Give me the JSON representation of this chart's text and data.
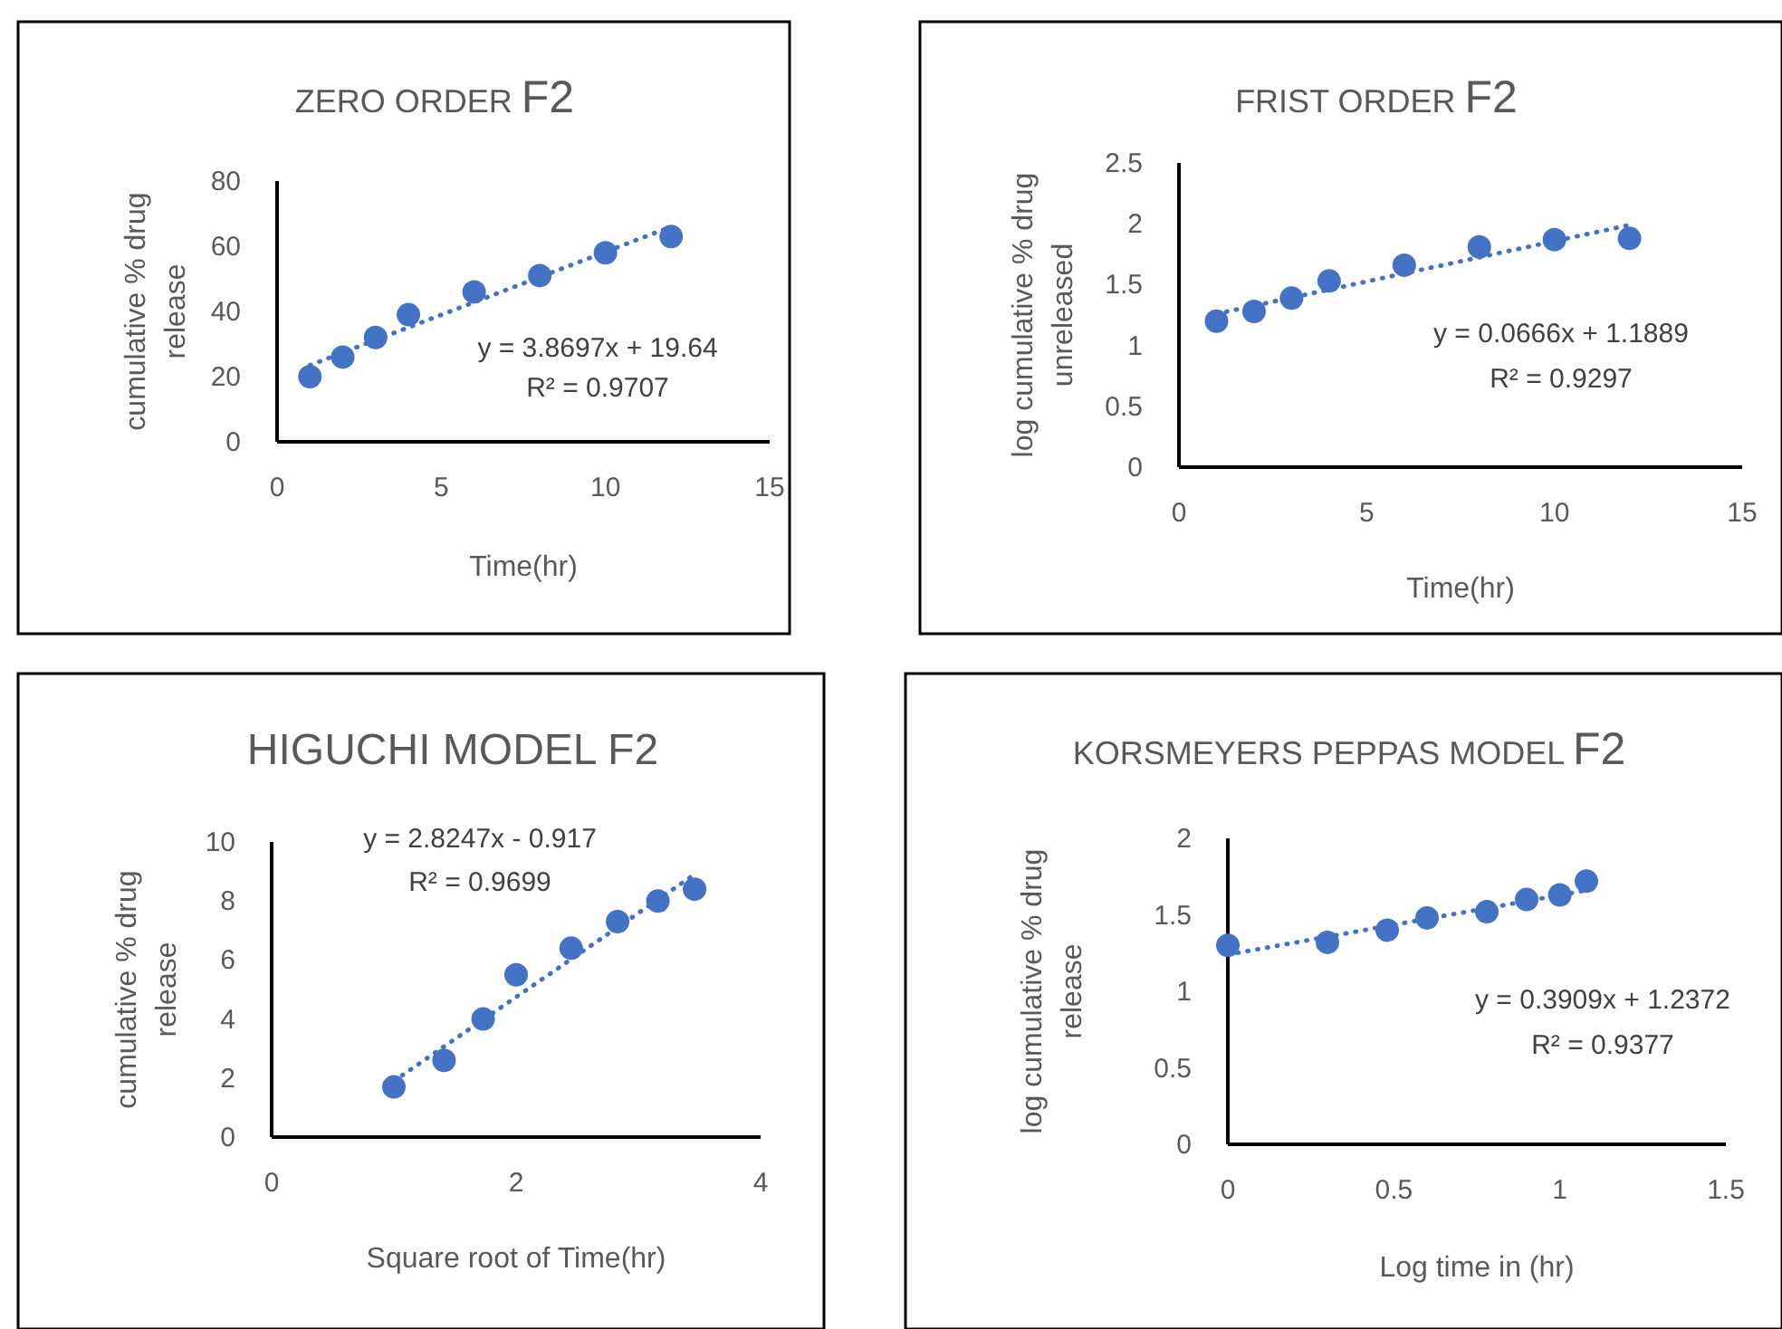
{
  "chart_data": [
    {
      "type": "scatter",
      "title": "ZERO ORDER F2",
      "xlabel": "Time(hr)",
      "ylabel": "cumulative % drug release",
      "x": [
        1,
        2,
        3,
        4,
        6,
        8,
        10,
        12
      ],
      "xlim": [
        0,
        15
      ],
      "xticks": [
        0,
        5,
        10,
        15
      ],
      "ylim": [
        0,
        80
      ],
      "yticks": [
        0,
        20,
        40,
        60,
        80
      ],
      "grid": false,
      "marker": "circle",
      "series": [
        {
          "color": "#4472c4",
          "values": [
            20,
            26,
            32,
            39,
            46,
            51,
            58,
            63
          ]
        },
        {
          "type": "line",
          "color": "#4472c4",
          "x": [
            1,
            12
          ],
          "values": [
            23.5,
            66
          ],
          "line_style": "dotted",
          "marker": "none"
        }
      ],
      "annotations": [
        "y = 3.8697x + 19.64",
        "R² = 0.9707"
      ]
    },
    {
      "type": "scatter",
      "title": "FRIST ORDER  F2",
      "xlabel": "Time(hr)",
      "ylabel": "log cumulative % drug unreleased",
      "x": [
        1,
        2,
        3,
        4,
        6,
        8,
        10,
        12
      ],
      "xlim": [
        0,
        15
      ],
      "xticks": [
        0,
        5,
        10,
        15
      ],
      "ylim": [
        0,
        2.5
      ],
      "yticks": [
        0,
        0.5,
        1,
        1.5,
        2,
        2.5
      ],
      "grid": false,
      "marker": "circle",
      "series": [
        {
          "color": "#4472c4",
          "values": [
            1.2,
            1.28,
            1.39,
            1.53,
            1.66,
            1.81,
            1.87,
            1.88
          ]
        },
        {
          "type": "line",
          "color": "#4472c4",
          "x": [
            1,
            12
          ],
          "values": [
            1.26,
            1.99
          ],
          "line_style": "dotted",
          "marker": "none"
        }
      ],
      "annotations": [
        "y = 0.0666x + 1.1889",
        "R² = 0.9297"
      ]
    },
    {
      "type": "scatter",
      "title": "HIGUCHI MODEL F2",
      "xlabel": "Square root of Time(hr)",
      "ylabel": "cumulative % drug release",
      "x": [
        1,
        1.41,
        1.73,
        2,
        2.45,
        2.83,
        3.16,
        3.46
      ],
      "xlim": [
        0,
        4
      ],
      "xticks": [
        0,
        2,
        4
      ],
      "ylim": [
        0,
        10
      ],
      "yticks": [
        0,
        2,
        4,
        6,
        8,
        10
      ],
      "grid": false,
      "marker": "circle",
      "series": [
        {
          "color": "#4472c4",
          "values": [
            1.7,
            2.6,
            4.0,
            5.5,
            6.4,
            7.3,
            8.0,
            8.4
          ]
        },
        {
          "type": "line",
          "color": "#4472c4",
          "x": [
            1,
            3.46
          ],
          "values": [
            1.9,
            8.9
          ],
          "line_style": "dotted",
          "marker": "none"
        }
      ],
      "annotations": [
        "y = 2.8247x - 0.917",
        "R² = 0.9699"
      ]
    },
    {
      "type": "scatter",
      "title": "KORSMEYERS PEPPAS MODEL F2",
      "xlabel": "Log time in (hr)",
      "ylabel": "log cumulative % drug release",
      "x": [
        0,
        0.3,
        0.48,
        0.6,
        0.78,
        0.9,
        1.0,
        1.08
      ],
      "xlim": [
        0,
        1.5
      ],
      "xticks": [
        0,
        0.5,
        1,
        1.5
      ],
      "ylim": [
        0,
        2
      ],
      "yticks": [
        0,
        0.5,
        1,
        1.5,
        2
      ],
      "grid": false,
      "marker": "circle",
      "series": [
        {
          "color": "#4472c4",
          "values": [
            1.3,
            1.32,
            1.4,
            1.48,
            1.52,
            1.6,
            1.63,
            1.72
          ]
        },
        {
          "type": "line",
          "color": "#4472c4",
          "x": [
            0,
            1.08
          ],
          "values": [
            1.24,
            1.66
          ],
          "line_style": "dotted",
          "marker": "none"
        }
      ],
      "annotations": [
        "y = 0.3909x + 1.2372",
        "R² = 0.9377"
      ]
    }
  ]
}
